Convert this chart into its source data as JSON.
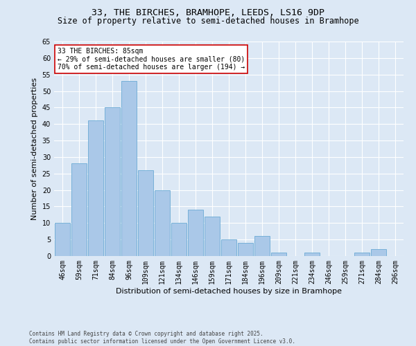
{
  "title1": "33, THE BIRCHES, BRAMHOPE, LEEDS, LS16 9DP",
  "title2": "Size of property relative to semi-detached houses in Bramhope",
  "categories": [
    "46sqm",
    "59sqm",
    "71sqm",
    "84sqm",
    "96sqm",
    "109sqm",
    "121sqm",
    "134sqm",
    "146sqm",
    "159sqm",
    "171sqm",
    "184sqm",
    "196sqm",
    "209sqm",
    "221sqm",
    "234sqm",
    "246sqm",
    "259sqm",
    "271sqm",
    "284sqm",
    "296sqm"
  ],
  "values": [
    10,
    28,
    41,
    45,
    53,
    26,
    20,
    10,
    14,
    12,
    5,
    4,
    6,
    1,
    0,
    1,
    0,
    0,
    1,
    2,
    0
  ],
  "bar_color": "#aac8e8",
  "bar_edge_color": "#6aaad4",
  "background_color": "#dce8f5",
  "grid_color": "#ffffff",
  "ylabel": "Number of semi-detached properties",
  "xlabel": "Distribution of semi-detached houses by size in Bramhope",
  "ylim": [
    0,
    65
  ],
  "yticks": [
    0,
    5,
    10,
    15,
    20,
    25,
    30,
    35,
    40,
    45,
    50,
    55,
    60,
    65
  ],
  "annotation_title": "33 THE BIRCHES: 85sqm",
  "annotation_line1": "← 29% of semi-detached houses are smaller (80)",
  "annotation_line2": "70% of semi-detached houses are larger (194) →",
  "annotation_box_facecolor": "#ffffff",
  "annotation_box_edgecolor": "#cc0000",
  "footer": "Contains HM Land Registry data © Crown copyright and database right 2025.\nContains public sector information licensed under the Open Government Licence v3.0.",
  "title1_fontsize": 9.5,
  "title2_fontsize": 8.5,
  "tick_fontsize": 7,
  "ylabel_fontsize": 8,
  "xlabel_fontsize": 8,
  "annotation_fontsize": 7,
  "footer_fontsize": 5.5
}
